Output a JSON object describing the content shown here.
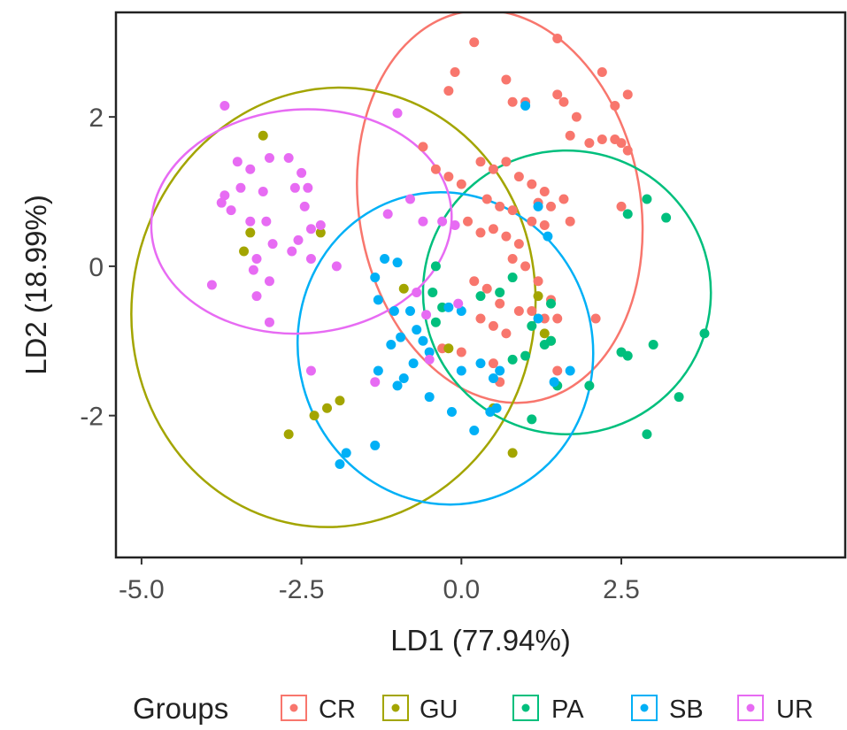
{
  "chart_data": {
    "type": "scatter",
    "xlabel": "LD1 (77.94%)",
    "ylabel": "LD2 (18.99%)",
    "xlim": [
      -5.4,
      6.0
    ],
    "ylim": [
      -3.9,
      3.4
    ],
    "x_ticks": [
      -5.0,
      -2.5,
      0.0,
      2.5
    ],
    "x_tick_labels": [
      "-5.0",
      "-2.5",
      "0.0",
      "2.5"
    ],
    "y_ticks": [
      2,
      0,
      -2
    ],
    "y_tick_labels": [
      "2",
      "0",
      "-2"
    ],
    "grid": false,
    "legend": {
      "title": "Groups",
      "position": "bottom"
    },
    "series": [
      {
        "name": "CR",
        "color": "#F8766D",
        "ellipse": {
          "cx": 0.6,
          "cy": 0.8,
          "rx": 2.2,
          "ry": 2.65,
          "angle": -10
        },
        "points": [
          [
            0.2,
            3.0
          ],
          [
            1.5,
            3.05
          ],
          [
            -0.1,
            2.6
          ],
          [
            0.7,
            2.5
          ],
          [
            -0.2,
            2.35
          ],
          [
            1.0,
            2.2
          ],
          [
            1.5,
            2.3
          ],
          [
            1.8,
            2.0
          ],
          [
            2.4,
            2.15
          ],
          [
            2.6,
            2.3
          ],
          [
            2.2,
            2.6
          ],
          [
            1.6,
            2.2
          ],
          [
            0.8,
            2.2
          ],
          [
            1.7,
            1.75
          ],
          [
            2.0,
            1.65
          ],
          [
            2.2,
            1.7
          ],
          [
            2.4,
            1.7
          ],
          [
            2.5,
            1.65
          ],
          [
            2.6,
            1.55
          ],
          [
            -0.6,
            1.6
          ],
          [
            -0.4,
            1.3
          ],
          [
            -0.2,
            1.2
          ],
          [
            0.0,
            1.1
          ],
          [
            0.3,
            1.4
          ],
          [
            0.5,
            1.3
          ],
          [
            0.7,
            1.4
          ],
          [
            0.9,
            1.2
          ],
          [
            1.1,
            1.1
          ],
          [
            1.3,
            1.0
          ],
          [
            0.4,
            0.9
          ],
          [
            0.6,
            0.8
          ],
          [
            0.8,
            0.75
          ],
          [
            1.2,
            0.85
          ],
          [
            1.4,
            0.8
          ],
          [
            1.6,
            0.9
          ],
          [
            1.7,
            0.6
          ],
          [
            2.5,
            0.8
          ],
          [
            0.1,
            0.6
          ],
          [
            0.3,
            0.45
          ],
          [
            0.5,
            0.5
          ],
          [
            0.7,
            0.4
          ],
          [
            0.9,
            0.3
          ],
          [
            1.1,
            0.6
          ],
          [
            1.3,
            0.55
          ],
          [
            0.8,
            0.1
          ],
          [
            1.0,
            0.0
          ],
          [
            1.2,
            -0.2
          ],
          [
            0.2,
            -0.2
          ],
          [
            0.4,
            -0.3
          ],
          [
            0.6,
            -0.5
          ],
          [
            0.9,
            -0.6
          ],
          [
            1.1,
            -0.6
          ],
          [
            1.3,
            -0.7
          ],
          [
            1.4,
            -0.45
          ],
          [
            1.5,
            -0.7
          ],
          [
            0.3,
            -0.7
          ],
          [
            0.5,
            -0.8
          ],
          [
            0.7,
            -0.9
          ],
          [
            2.1,
            -0.7
          ],
          [
            0.5,
            -1.3
          ],
          [
            1.5,
            -1.4
          ],
          [
            -0.3,
            -1.1
          ],
          [
            0.0,
            -1.15
          ],
          [
            0.6,
            -1.55
          ]
        ]
      },
      {
        "name": "GU",
        "color": "#A3A500",
        "ellipse": {
          "cx": -2.0,
          "cy": -0.55,
          "rx": 3.15,
          "ry": 2.95,
          "angle": 10
        },
        "points": [
          [
            -3.1,
            1.75
          ],
          [
            -3.3,
            0.45
          ],
          [
            -3.4,
            0.2
          ],
          [
            -2.2,
            0.45
          ],
          [
            -0.9,
            -0.3
          ],
          [
            -0.2,
            -1.1
          ],
          [
            -2.7,
            -2.25
          ],
          [
            -2.3,
            -2.0
          ],
          [
            -1.9,
            -1.8
          ],
          [
            -2.1,
            -1.9
          ],
          [
            0.5,
            -1.9
          ],
          [
            0.8,
            -2.5
          ],
          [
            1.2,
            -0.4
          ],
          [
            1.3,
            -0.9
          ],
          [
            1.4,
            -1.0
          ]
        ]
      },
      {
        "name": "PA",
        "color": "#00BF7D",
        "ellipse": {
          "cx": 1.65,
          "cy": -0.35,
          "rx": 2.25,
          "ry": 1.9,
          "angle": 5
        },
        "points": [
          [
            2.6,
            0.7
          ],
          [
            2.9,
            0.9
          ],
          [
            3.2,
            0.65
          ],
          [
            -0.4,
            0.0
          ],
          [
            -0.45,
            -0.35
          ],
          [
            -0.3,
            -0.55
          ],
          [
            -0.4,
            -0.75
          ],
          [
            0.3,
            -0.4
          ],
          [
            0.6,
            -0.35
          ],
          [
            1.1,
            -0.8
          ],
          [
            1.4,
            -0.5
          ],
          [
            1.3,
            -1.05
          ],
          [
            1.4,
            -1.0
          ],
          [
            2.5,
            -1.15
          ],
          [
            2.6,
            -1.2
          ],
          [
            3.0,
            -1.05
          ],
          [
            3.8,
            -0.9
          ],
          [
            0.8,
            -1.25
          ],
          [
            1.0,
            -1.2
          ],
          [
            2.0,
            -1.6
          ],
          [
            1.5,
            -1.6
          ],
          [
            3.4,
            -1.75
          ],
          [
            1.1,
            -2.05
          ],
          [
            2.9,
            -2.25
          ],
          [
            0.8,
            -0.15
          ]
        ]
      },
      {
        "name": "SB",
        "color": "#00B0F6",
        "ellipse": {
          "cx": -0.25,
          "cy": -1.1,
          "rx": 2.3,
          "ry": 2.1,
          "angle": -15
        },
        "points": [
          [
            1.0,
            2.15
          ],
          [
            1.2,
            0.8
          ],
          [
            1.35,
            0.4
          ],
          [
            -1.0,
            0.05
          ],
          [
            -1.2,
            0.1
          ],
          [
            -1.35,
            -0.15
          ],
          [
            -1.3,
            -0.45
          ],
          [
            -1.05,
            -0.6
          ],
          [
            -0.8,
            -0.6
          ],
          [
            -0.7,
            -0.85
          ],
          [
            -0.95,
            -0.95
          ],
          [
            -1.1,
            -1.05
          ],
          [
            -0.6,
            -1.0
          ],
          [
            -0.5,
            -1.15
          ],
          [
            -0.75,
            -1.3
          ],
          [
            -0.9,
            -1.5
          ],
          [
            -1.0,
            -1.6
          ],
          [
            -1.3,
            -1.4
          ],
          [
            -0.2,
            -0.55
          ],
          [
            0.0,
            -0.6
          ],
          [
            0.3,
            -1.3
          ],
          [
            0.5,
            -1.5
          ],
          [
            0.6,
            -1.4
          ],
          [
            0.0,
            -1.4
          ],
          [
            -0.5,
            -1.75
          ],
          [
            -0.15,
            -1.95
          ],
          [
            0.2,
            -2.2
          ],
          [
            0.45,
            -1.95
          ],
          [
            0.55,
            -1.9
          ],
          [
            -1.35,
            -2.4
          ],
          [
            -1.8,
            -2.5
          ],
          [
            -1.9,
            -2.65
          ],
          [
            1.45,
            -1.55
          ],
          [
            1.7,
            -1.4
          ],
          [
            1.2,
            -0.7
          ]
        ]
      },
      {
        "name": "UR",
        "color": "#E76BF3",
        "ellipse": {
          "cx": -2.5,
          "cy": 0.6,
          "rx": 2.35,
          "ry": 1.5,
          "angle": -4
        },
        "points": [
          [
            -3.7,
            2.15
          ],
          [
            -1.0,
            2.05
          ],
          [
            -3.5,
            1.4
          ],
          [
            -3.3,
            1.3
          ],
          [
            -3.0,
            1.45
          ],
          [
            -2.7,
            1.45
          ],
          [
            -2.5,
            1.25
          ],
          [
            -2.4,
            1.05
          ],
          [
            -2.6,
            1.05
          ],
          [
            -3.1,
            1.0
          ],
          [
            -3.45,
            1.05
          ],
          [
            -3.7,
            0.95
          ],
          [
            -3.75,
            0.85
          ],
          [
            -3.6,
            0.75
          ],
          [
            -3.3,
            0.6
          ],
          [
            -3.05,
            0.6
          ],
          [
            -2.45,
            0.8
          ],
          [
            -2.2,
            0.55
          ],
          [
            -2.35,
            0.5
          ],
          [
            -2.55,
            0.35
          ],
          [
            -2.95,
            0.3
          ],
          [
            -3.2,
            0.1
          ],
          [
            -3.25,
            -0.05
          ],
          [
            -3.0,
            -0.2
          ],
          [
            -2.65,
            0.2
          ],
          [
            -2.35,
            0.1
          ],
          [
            -1.95,
            0.0
          ],
          [
            -3.9,
            -0.25
          ],
          [
            -3.0,
            -0.75
          ],
          [
            -3.2,
            -0.4
          ],
          [
            -0.8,
            0.9
          ],
          [
            -1.15,
            0.7
          ],
          [
            -0.6,
            0.6
          ],
          [
            -0.3,
            0.6
          ],
          [
            -0.1,
            0.55
          ],
          [
            -0.05,
            -0.5
          ],
          [
            -0.7,
            -0.35
          ],
          [
            -0.55,
            -0.65
          ],
          [
            -0.5,
            -1.25
          ],
          [
            -2.35,
            -1.4
          ],
          [
            -1.35,
            -1.55
          ]
        ]
      }
    ]
  }
}
